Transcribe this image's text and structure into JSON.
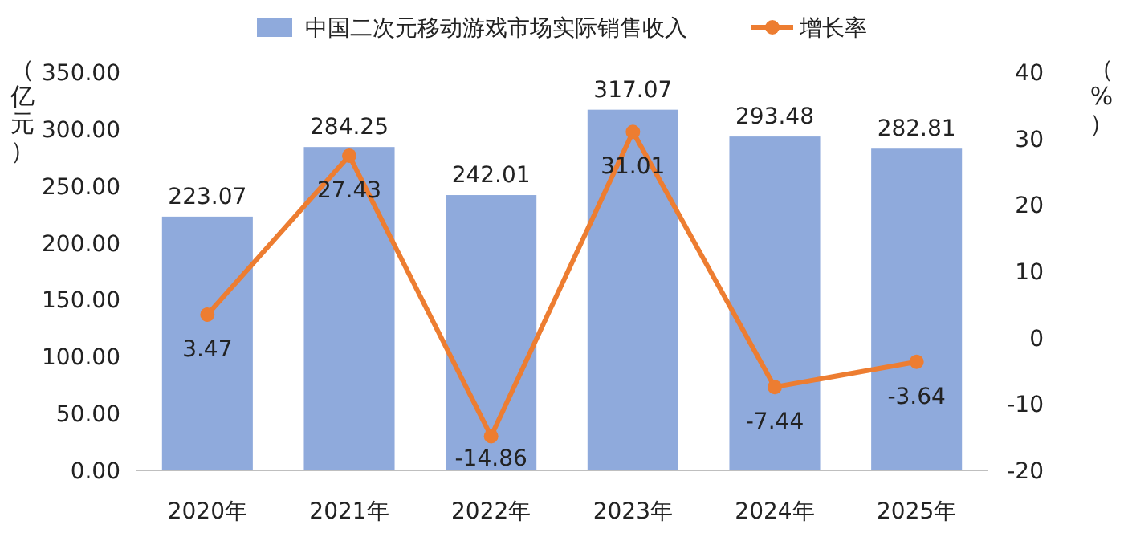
{
  "chart_data": {
    "type": "bar",
    "ylabel": "（亿元）",
    "y2label": "（%）",
    "categories": [
      "2020年",
      "2021年",
      "2022年",
      "2023年",
      "2024年",
      "2025年"
    ],
    "series": [
      {
        "name": "中国二次元移动游戏市场实际销售收入",
        "color": "#8faadc",
        "values": [
          223.07,
          284.25,
          242.01,
          317.07,
          293.48,
          282.81
        ]
      },
      {
        "name": "增长率",
        "type": "line",
        "axis": "y2",
        "color": "#ed7d31",
        "marker": "circle",
        "values": [
          3.47,
          27.43,
          -14.86,
          31.01,
          -7.44,
          -3.64
        ]
      }
    ],
    "ylim": [
      0,
      350
    ],
    "yticks": [
      {
        "value": 0,
        "label": "0.00"
      },
      {
        "value": 50,
        "label": "50.00"
      },
      {
        "value": 100,
        "label": "100.00"
      },
      {
        "value": 150,
        "label": "150.00"
      },
      {
        "value": 200,
        "label": "200.00"
      },
      {
        "value": 250,
        "label": "250.00"
      },
      {
        "value": 300,
        "label": "300.00"
      },
      {
        "value": 350,
        "label": "350.00"
      }
    ],
    "y2lim": [
      -20,
      40
    ],
    "y2ticks": [
      -20,
      -10,
      0,
      10,
      20,
      30,
      40
    ],
    "data_labels": true,
    "legend": "top",
    "grid": false
  }
}
